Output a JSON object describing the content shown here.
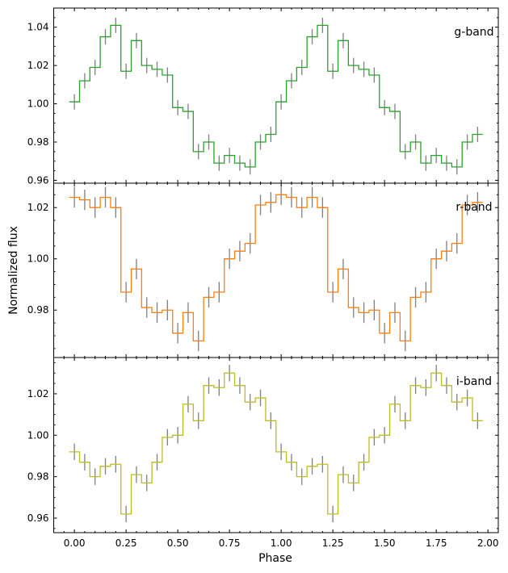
{
  "chart_data": {
    "type": "line",
    "style": "step",
    "xlabel": "Phase",
    "ylabel": "Normalized flux",
    "xlim": [
      -0.1,
      2.05
    ],
    "xticks": [
      "0.00",
      "0.25",
      "0.50",
      "0.75",
      "1.00",
      "1.25",
      "1.50",
      "1.75",
      "2.00"
    ],
    "x": [
      0.0,
      0.05,
      0.1,
      0.15,
      0.2,
      0.25,
      0.3,
      0.35,
      0.4,
      0.45,
      0.5,
      0.55,
      0.6,
      0.65,
      0.7,
      0.75,
      0.8,
      0.85,
      0.9,
      0.95,
      1.0,
      1.05,
      1.1,
      1.15,
      1.2,
      1.25,
      1.3,
      1.35,
      1.4,
      1.45,
      1.5,
      1.55,
      1.6,
      1.65,
      1.7,
      1.75,
      1.8,
      1.85,
      1.9,
      1.95
    ],
    "error_bar_color": "#808080",
    "panels": [
      {
        "label": "g-band",
        "color": "#2ca02c",
        "ylim": [
          0.9585,
          1.05
        ],
        "yticks": [
          "0.96",
          "0.98",
          "1.00",
          "1.02",
          "1.04"
        ],
        "values": [
          1.001,
          1.012,
          1.019,
          1.035,
          1.041,
          1.017,
          1.033,
          1.02,
          1.018,
          1.015,
          0.998,
          0.996,
          0.975,
          0.98,
          0.969,
          0.973,
          0.969,
          0.967,
          0.98,
          0.984,
          1.001,
          1.012,
          1.019,
          1.035,
          1.041,
          1.017,
          1.033,
          1.02,
          1.018,
          1.015,
          0.998,
          0.996,
          0.975,
          0.98,
          0.969,
          0.973,
          0.969,
          0.967,
          0.98,
          0.984
        ],
        "errors": [
          0.004,
          0.004,
          0.004,
          0.004,
          0.004,
          0.004,
          0.004,
          0.004,
          0.004,
          0.004,
          0.004,
          0.004,
          0.004,
          0.004,
          0.004,
          0.004,
          0.004,
          0.004,
          0.004,
          0.004,
          0.004,
          0.004,
          0.004,
          0.004,
          0.004,
          0.004,
          0.004,
          0.004,
          0.004,
          0.004,
          0.004,
          0.004,
          0.004,
          0.004,
          0.004,
          0.004,
          0.004,
          0.004,
          0.004,
          0.004
        ]
      },
      {
        "label": "r-band",
        "color": "#ff7f0e",
        "ylim": [
          0.9615,
          1.0295
        ],
        "yticks": [
          "0.98",
          "1.00",
          "1.02"
        ],
        "values": [
          1.024,
          1.023,
          1.02,
          1.024,
          1.02,
          0.987,
          0.996,
          0.981,
          0.979,
          0.98,
          0.971,
          0.979,
          0.968,
          0.985,
          0.987,
          1.0,
          1.003,
          1.006,
          1.021,
          1.022,
          1.025,
          1.024,
          1.02,
          1.024,
          1.02,
          0.987,
          0.996,
          0.981,
          0.979,
          0.98,
          0.971,
          0.979,
          0.968,
          0.985,
          0.987,
          1.0,
          1.003,
          1.006,
          1.021,
          1.022
        ],
        "errors": [
          0.004,
          0.004,
          0.004,
          0.004,
          0.004,
          0.004,
          0.004,
          0.004,
          0.004,
          0.004,
          0.004,
          0.004,
          0.004,
          0.004,
          0.004,
          0.004,
          0.004,
          0.004,
          0.004,
          0.004,
          0.004,
          0.004,
          0.004,
          0.004,
          0.004,
          0.004,
          0.004,
          0.004,
          0.004,
          0.004,
          0.004,
          0.004,
          0.004,
          0.004,
          0.004,
          0.004,
          0.004,
          0.004,
          0.004,
          0.004
        ]
      },
      {
        "label": "i-band",
        "color": "#bcbd22",
        "ylim": [
          0.953,
          1.0375
        ],
        "yticks": [
          "0.96",
          "0.98",
          "1.00",
          "1.02"
        ],
        "values": [
          0.992,
          0.987,
          0.98,
          0.985,
          0.986,
          0.962,
          0.981,
          0.977,
          0.987,
          0.999,
          1.0,
          1.015,
          1.007,
          1.024,
          1.023,
          1.03,
          1.024,
          1.016,
          1.018,
          1.007,
          0.992,
          0.987,
          0.98,
          0.985,
          0.986,
          0.962,
          0.981,
          0.977,
          0.987,
          0.999,
          1.0,
          1.015,
          1.007,
          1.024,
          1.023,
          1.03,
          1.024,
          1.016,
          1.018,
          1.007
        ],
        "errors": [
          0.004,
          0.004,
          0.004,
          0.004,
          0.004,
          0.004,
          0.004,
          0.004,
          0.004,
          0.004,
          0.004,
          0.004,
          0.004,
          0.004,
          0.004,
          0.004,
          0.004,
          0.004,
          0.004,
          0.004,
          0.004,
          0.004,
          0.004,
          0.004,
          0.004,
          0.004,
          0.004,
          0.004,
          0.004,
          0.004,
          0.004,
          0.004,
          0.004,
          0.004,
          0.004,
          0.004,
          0.004,
          0.004,
          0.004,
          0.004
        ]
      }
    ]
  }
}
